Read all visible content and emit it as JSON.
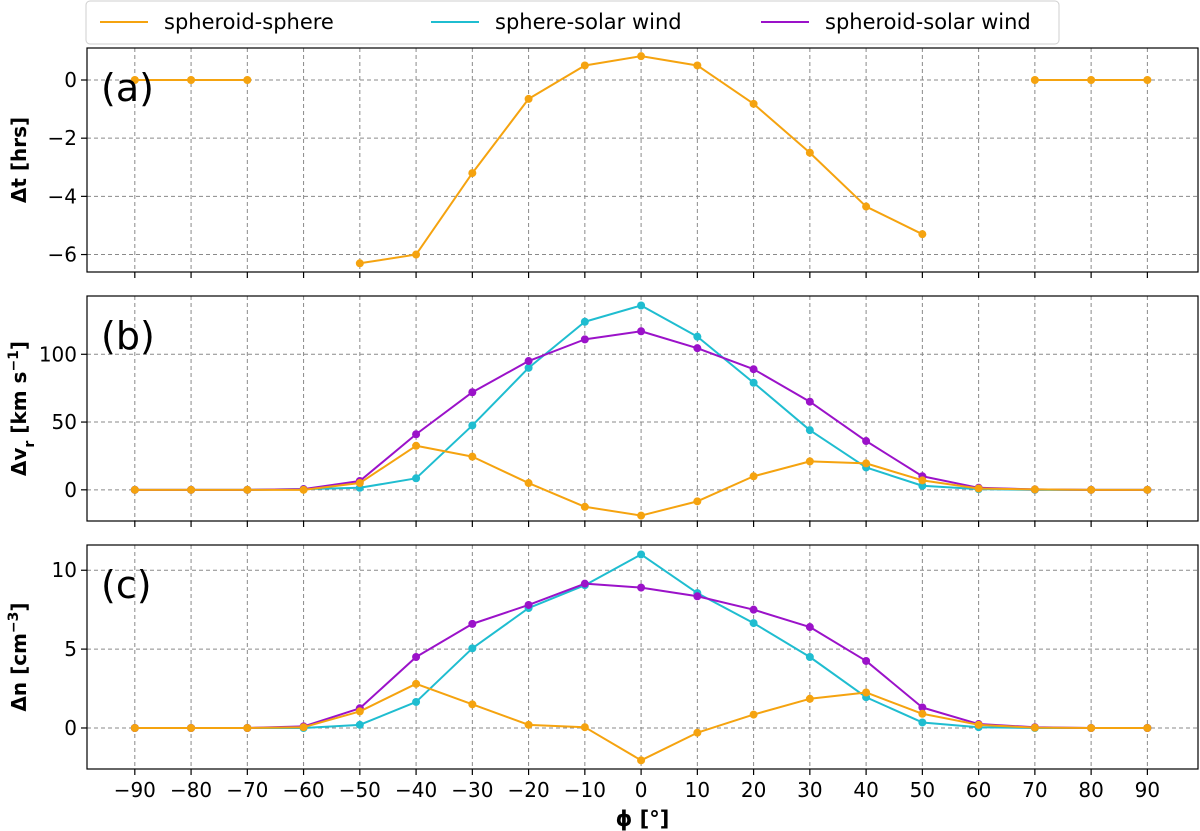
{
  "chart_data": {
    "type": "line",
    "x": [
      -90,
      -80,
      -70,
      -60,
      -50,
      -40,
      -30,
      -20,
      -10,
      0,
      10,
      20,
      30,
      40,
      50,
      60,
      70,
      80,
      90
    ],
    "xlabel": "ϕ [°]",
    "xticks": [
      -90,
      -80,
      -70,
      -60,
      -50,
      -40,
      -30,
      -20,
      -10,
      0,
      10,
      20,
      30,
      40,
      50,
      60,
      70,
      80,
      90
    ],
    "xlim": [
      -98.5,
      99
    ],
    "grid": true,
    "legend": {
      "placement": "top",
      "entries": [
        {
          "name": "spheroid-sphere",
          "color": "#f5a30f"
        },
        {
          "name": "sphere-solar wind",
          "color": "#1fbdd0"
        },
        {
          "name": "spheroid-solar wind",
          "color": "#9b12c9"
        }
      ]
    },
    "panels": [
      {
        "label": "(a)",
        "ylabel": "Δt [hrs]",
        "ylim": [
          -6.6,
          1.1
        ],
        "yticks": [
          0,
          -2,
          -4,
          -6
        ],
        "series": [
          {
            "name": "spheroid-sphere",
            "color": "#f5a30f",
            "values": [
              0,
              0,
              0,
              null,
              -6.3,
              -6.0,
              -3.2,
              -0.65,
              0.5,
              0.82,
              0.5,
              -0.82,
              -2.5,
              -4.35,
              -5.3,
              null,
              0,
              0,
              0
            ]
          }
        ]
      },
      {
        "label": "(b)",
        "ylabel": "Δv_r [km s^-1]",
        "ylim": [
          -23,
          143
        ],
        "yticks": [
          0,
          50,
          100
        ],
        "series": [
          {
            "name": "sphere-solar wind",
            "color": "#1fbdd0",
            "values": [
              0,
              0,
              0,
              0.5,
              1.5,
              8.5,
              47.5,
              90,
              124,
              136,
              113,
              79,
              44,
              16.5,
              3,
              0.5,
              0,
              0,
              0
            ]
          },
          {
            "name": "spheroid-solar wind",
            "color": "#9b12c9",
            "values": [
              0,
              0,
              0,
              0.5,
              6.5,
              41,
              72,
              95,
              111,
              117,
              104.5,
              89,
              65,
              36,
              10,
              1.5,
              0.3,
              0,
              0
            ]
          },
          {
            "name": "spheroid-sphere",
            "color": "#f5a30f",
            "values": [
              0,
              0,
              0,
              0,
              5,
              32.5,
              24.5,
              5,
              -12.5,
              -19,
              -8.5,
              10,
              21,
              19.5,
              7,
              1,
              0.3,
              0,
              0
            ]
          }
        ]
      },
      {
        "label": "(c)",
        "ylabel": "Δn [cm^-3]",
        "ylim": [
          -2.6,
          11.6
        ],
        "yticks": [
          0,
          5,
          10
        ],
        "series": [
          {
            "name": "sphere-solar wind",
            "color": "#1fbdd0",
            "values": [
              0,
              0,
              0,
              0,
              0.2,
              1.65,
              5.05,
              7.6,
              9.05,
              11,
              8.55,
              6.65,
              4.5,
              1.95,
              0.35,
              0.05,
              0,
              0,
              0
            ]
          },
          {
            "name": "spheroid-solar wind",
            "color": "#9b12c9",
            "values": [
              0,
              0,
              0,
              0.1,
              1.25,
              4.5,
              6.6,
              7.8,
              9.15,
              8.9,
              8.35,
              7.5,
              6.4,
              4.25,
              1.3,
              0.25,
              0.05,
              0,
              0
            ]
          },
          {
            "name": "spheroid-sphere",
            "color": "#f5a30f",
            "values": [
              0,
              0,
              0,
              0.05,
              1.05,
              2.8,
              1.5,
              0.2,
              0.05,
              -2.05,
              -0.3,
              0.85,
              1.85,
              2.25,
              0.9,
              0.2,
              0.02,
              0,
              0
            ]
          }
        ]
      }
    ]
  }
}
